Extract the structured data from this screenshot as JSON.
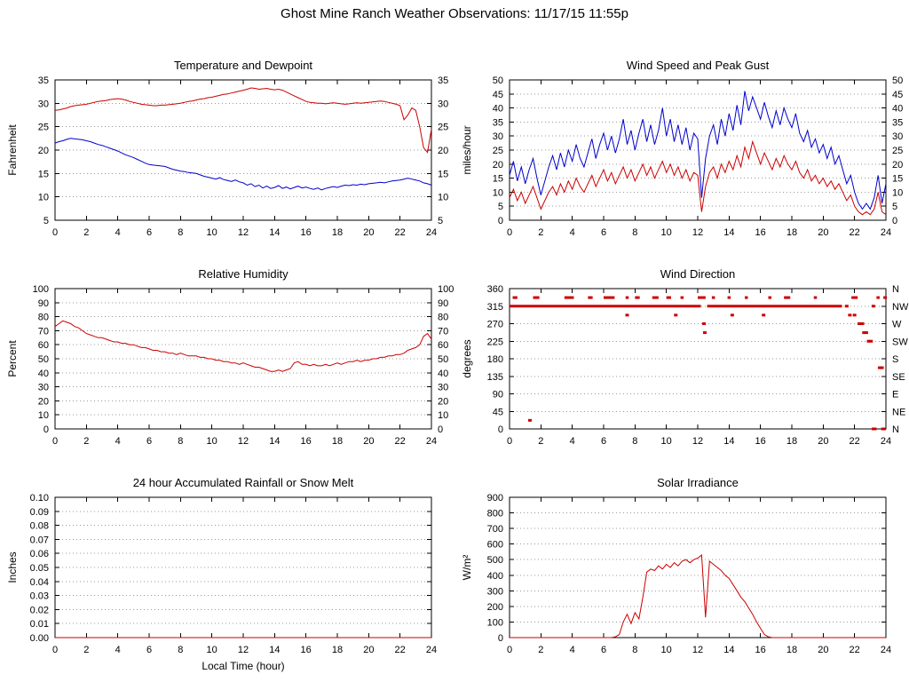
{
  "header": {
    "title": "Ghost Mine Ranch Weather Observations: 11/17/15 11:55p"
  },
  "chart_data": [
    {
      "id": "temperature-dewpoint",
      "type": "line",
      "title": "Temperature and Dewpoint",
      "ylabel": "Fahrenheit",
      "xlim": [
        0,
        24
      ],
      "xstep": 2,
      "ylim": [
        5,
        35
      ],
      "ystep": 5,
      "mirror_right_labels": true,
      "grid": true,
      "series": [
        {
          "name": "temperature",
          "color": "#cc0000",
          "x_start": 0,
          "x_step": 0.25,
          "values": [
            28.5,
            28.6,
            28.8,
            29.0,
            29.3,
            29.5,
            29.6,
            29.7,
            29.8,
            30.0,
            30.2,
            30.4,
            30.5,
            30.6,
            30.8,
            30.9,
            31.0,
            30.9,
            30.7,
            30.4,
            30.2,
            30.0,
            29.8,
            29.7,
            29.6,
            29.5,
            29.5,
            29.6,
            29.6,
            29.7,
            29.8,
            29.9,
            30.0,
            30.2,
            30.4,
            30.5,
            30.7,
            30.9,
            31.0,
            31.2,
            31.3,
            31.5,
            31.7,
            31.9,
            32.0,
            32.2,
            32.4,
            32.6,
            32.8,
            33.0,
            33.3,
            33.2,
            33.0,
            33.1,
            33.2,
            33.0,
            32.9,
            33.0,
            32.8,
            32.4,
            32.0,
            31.6,
            31.2,
            30.8,
            30.4,
            30.2,
            30.1,
            30.0,
            30.0,
            29.9,
            30.0,
            30.1,
            30.0,
            29.9,
            29.8,
            29.9,
            30.0,
            30.1,
            30.0,
            30.1,
            30.2,
            30.3,
            30.4,
            30.5,
            30.4,
            30.2,
            30.0,
            29.8,
            29.5,
            26.5,
            27.5,
            29.0,
            28.5,
            25.0,
            20.5,
            19.5,
            24.5
          ]
        },
        {
          "name": "dewpoint",
          "color": "#0000cc",
          "x_start": 0,
          "x_step": 0.25,
          "values": [
            21.5,
            21.8,
            22.0,
            22.3,
            22.5,
            22.4,
            22.3,
            22.2,
            22.0,
            21.8,
            21.5,
            21.2,
            21.0,
            20.7,
            20.4,
            20.1,
            19.8,
            19.4,
            19.0,
            18.7,
            18.4,
            18.0,
            17.6,
            17.2,
            16.9,
            16.8,
            16.7,
            16.6,
            16.5,
            16.2,
            15.9,
            15.7,
            15.5,
            15.4,
            15.2,
            15.1,
            15.0,
            14.7,
            14.4,
            14.2,
            14.0,
            13.8,
            14.1,
            13.7,
            13.5,
            13.3,
            13.6,
            13.2,
            13.0,
            12.5,
            12.8,
            12.2,
            12.5,
            11.9,
            12.3,
            11.8,
            12.0,
            12.4,
            11.8,
            12.1,
            11.7,
            12.0,
            12.3,
            11.9,
            12.1,
            11.8,
            11.6,
            11.9,
            11.5,
            11.8,
            12.0,
            12.2,
            12.0,
            12.3,
            12.5,
            12.4,
            12.6,
            12.5,
            12.7,
            12.6,
            12.8,
            12.9,
            13.0,
            13.1,
            13.0,
            13.2,
            13.4,
            13.5,
            13.6,
            13.8,
            14.0,
            13.8,
            13.6,
            13.4,
            13.0,
            12.8,
            12.5
          ]
        }
      ]
    },
    {
      "id": "wind-speed-peak-gust",
      "type": "line",
      "title": "Wind Speed and Peak Gust",
      "ylabel": "miles/hour",
      "xlim": [
        0,
        24
      ],
      "xstep": 2,
      "ylim": [
        0,
        50
      ],
      "ystep": 5,
      "mirror_right_labels": true,
      "grid": true,
      "series": [
        {
          "name": "peak-gust",
          "color": "#0000cc",
          "x_start": 0,
          "x_step": 0.25,
          "values": [
            16,
            21,
            14,
            19,
            13,
            18,
            22,
            15,
            9,
            14,
            19,
            23,
            18,
            24,
            19,
            25,
            21,
            27,
            22,
            19,
            24,
            29,
            22,
            27,
            31,
            25,
            30,
            24,
            29,
            36,
            27,
            32,
            25,
            31,
            36,
            28,
            34,
            27,
            32,
            40,
            30,
            36,
            28,
            34,
            27,
            33,
            25,
            31,
            29,
            8,
            22,
            30,
            34,
            27,
            36,
            30,
            38,
            32,
            41,
            34,
            46,
            39,
            44,
            40,
            36,
            42,
            37,
            33,
            39,
            34,
            40,
            36,
            33,
            38,
            31,
            28,
            32,
            26,
            29,
            24,
            27,
            22,
            26,
            20,
            23,
            18,
            13,
            16,
            10,
            6,
            4,
            6,
            4,
            8,
            16,
            6,
            13
          ]
        },
        {
          "name": "wind-speed",
          "color": "#cc0000",
          "x_start": 0,
          "x_step": 0.25,
          "values": [
            8,
            11,
            7,
            10,
            6,
            9,
            12,
            8,
            4,
            7,
            10,
            12,
            9,
            13,
            10,
            14,
            11,
            15,
            12,
            10,
            13,
            16,
            12,
            15,
            18,
            14,
            17,
            13,
            16,
            19,
            15,
            18,
            14,
            17,
            20,
            16,
            19,
            15,
            18,
            21,
            17,
            20,
            16,
            19,
            15,
            18,
            14,
            17,
            16,
            3,
            12,
            17,
            19,
            15,
            20,
            17,
            21,
            18,
            23,
            19,
            26,
            22,
            28,
            24,
            20,
            24,
            21,
            18,
            22,
            19,
            23,
            20,
            18,
            21,
            17,
            15,
            18,
            14,
            16,
            13,
            15,
            12,
            14,
            11,
            13,
            10,
            7,
            9,
            5,
            3,
            2,
            3,
            2,
            4,
            10,
            3,
            2
          ]
        }
      ]
    },
    {
      "id": "relative-humidity",
      "type": "line",
      "title": "Relative Humidity",
      "ylabel": "Percent",
      "xlim": [
        0,
        24
      ],
      "xstep": 2,
      "ylim": [
        0,
        100
      ],
      "ystep": 10,
      "mirror_right_labels": true,
      "grid": true,
      "series": [
        {
          "name": "humidity",
          "color": "#cc0000",
          "x_start": 0,
          "x_step": 0.25,
          "values": [
            73,
            75,
            77,
            76,
            75,
            73,
            72,
            70,
            68,
            67,
            66,
            65,
            65,
            64,
            63,
            62,
            62,
            61,
            61,
            60,
            60,
            59,
            58,
            58,
            57,
            56,
            56,
            55,
            55,
            54,
            54,
            53,
            54,
            53,
            52,
            52,
            52,
            51,
            51,
            50,
            50,
            49,
            49,
            48,
            48,
            47,
            47,
            46,
            47,
            46,
            45,
            44,
            44,
            43,
            42,
            41,
            41,
            42,
            41,
            42,
            43,
            47,
            48,
            46,
            46,
            45,
            46,
            45,
            45,
            46,
            45,
            46,
            47,
            46,
            47,
            48,
            48,
            49,
            48,
            49,
            49,
            50,
            50,
            51,
            51,
            52,
            52,
            53,
            53,
            54,
            56,
            57,
            58,
            60,
            66,
            68,
            64
          ]
        }
      ]
    },
    {
      "id": "wind-direction",
      "type": "scatter",
      "title": "Wind Direction",
      "ylabel": "degrees",
      "xlim": [
        0,
        24
      ],
      "xstep": 2,
      "ylim": [
        0,
        360
      ],
      "ystep": 45,
      "right_labels_bottom_to_top": [
        "N",
        "NE",
        "E",
        "SE",
        "S",
        "SW",
        "W",
        "NW",
        "N"
      ],
      "grid": true,
      "point_color": "#cc0000",
      "segments": [
        [
          0,
          12.2,
          315
        ],
        [
          12.6,
          21.2,
          315
        ],
        [
          0.2,
          0.5,
          337
        ],
        [
          1.5,
          1.9,
          337
        ],
        [
          3.5,
          4.1,
          337
        ],
        [
          5.0,
          5.3,
          337
        ],
        [
          6.0,
          6.7,
          337
        ],
        [
          7.4,
          7.6,
          337
        ],
        [
          8.0,
          8.3,
          337
        ],
        [
          9.1,
          9.5,
          337
        ],
        [
          10.0,
          10.3,
          337
        ],
        [
          10.9,
          11.1,
          337
        ],
        [
          12.0,
          12.5,
          337
        ],
        [
          12.9,
          13.1,
          337
        ],
        [
          13.9,
          14.1,
          337
        ],
        [
          15.0,
          15.2,
          337
        ],
        [
          16.5,
          16.7,
          337
        ],
        [
          17.5,
          17.9,
          337
        ],
        [
          19.4,
          19.6,
          337
        ],
        [
          21.8,
          22.2,
          337
        ],
        [
          23.4,
          23.6,
          337
        ],
        [
          23.1,
          23.4,
          0
        ],
        [
          23.7,
          24.0,
          0
        ]
      ],
      "points": [
        [
          1.3,
          22
        ],
        [
          7.5,
          292
        ],
        [
          10.6,
          292
        ],
        [
          12.4,
          270
        ],
        [
          12.45,
          247
        ],
        [
          14.2,
          292
        ],
        [
          16.2,
          292
        ],
        [
          21.5,
          315
        ],
        [
          21.7,
          292
        ],
        [
          22.0,
          292
        ],
        [
          22.3,
          270
        ],
        [
          22.5,
          270
        ],
        [
          22.6,
          247
        ],
        [
          22.75,
          247
        ],
        [
          22.9,
          225
        ],
        [
          23.05,
          225
        ],
        [
          23.2,
          315
        ],
        [
          23.6,
          157
        ],
        [
          23.75,
          157
        ],
        [
          23.95,
          337
        ]
      ]
    },
    {
      "id": "rainfall-snowmelt",
      "type": "line",
      "title": "24 hour Accumulated Rainfall or Snow Melt",
      "ylabel": "Inches",
      "xlabel": "Local Time (hour)",
      "xlim": [
        0,
        24
      ],
      "xstep": 2,
      "ylim": [
        0,
        0.1
      ],
      "ystep": 0.01,
      "y_decimals": 2,
      "grid": true,
      "series": [
        {
          "name": "rainfall",
          "color": "#cc0000",
          "xy": [
            [
              0,
              0
            ],
            [
              24,
              0
            ]
          ]
        }
      ]
    },
    {
      "id": "solar-irradiance",
      "type": "line",
      "title": "Solar Irradiance",
      "ylabel": "W/m²",
      "xlim": [
        0,
        24
      ],
      "xstep": 2,
      "ylim": [
        0,
        900
      ],
      "ystep": 100,
      "grid": true,
      "series": [
        {
          "name": "solar",
          "color": "#cc0000",
          "x_start": 0,
          "x_step": 0.25,
          "values": [
            0,
            0,
            0,
            0,
            0,
            0,
            0,
            0,
            0,
            0,
            0,
            0,
            0,
            0,
            0,
            0,
            0,
            0,
            0,
            0,
            0,
            0,
            0,
            0,
            0,
            0,
            0,
            5,
            20,
            100,
            150,
            90,
            160,
            120,
            260,
            420,
            440,
            430,
            460,
            440,
            470,
            450,
            480,
            460,
            490,
            500,
            480,
            500,
            510,
            530,
            130,
            490,
            470,
            450,
            430,
            400,
            380,
            340,
            300,
            260,
            230,
            190,
            150,
            100,
            60,
            20,
            5,
            0,
            0,
            0,
            0,
            0,
            0,
            0,
            0,
            0,
            0,
            0,
            0,
            0,
            0,
            0,
            0,
            0,
            0,
            0,
            0,
            0,
            0,
            0,
            0,
            0,
            0,
            0,
            0,
            0,
            0
          ]
        }
      ]
    }
  ]
}
